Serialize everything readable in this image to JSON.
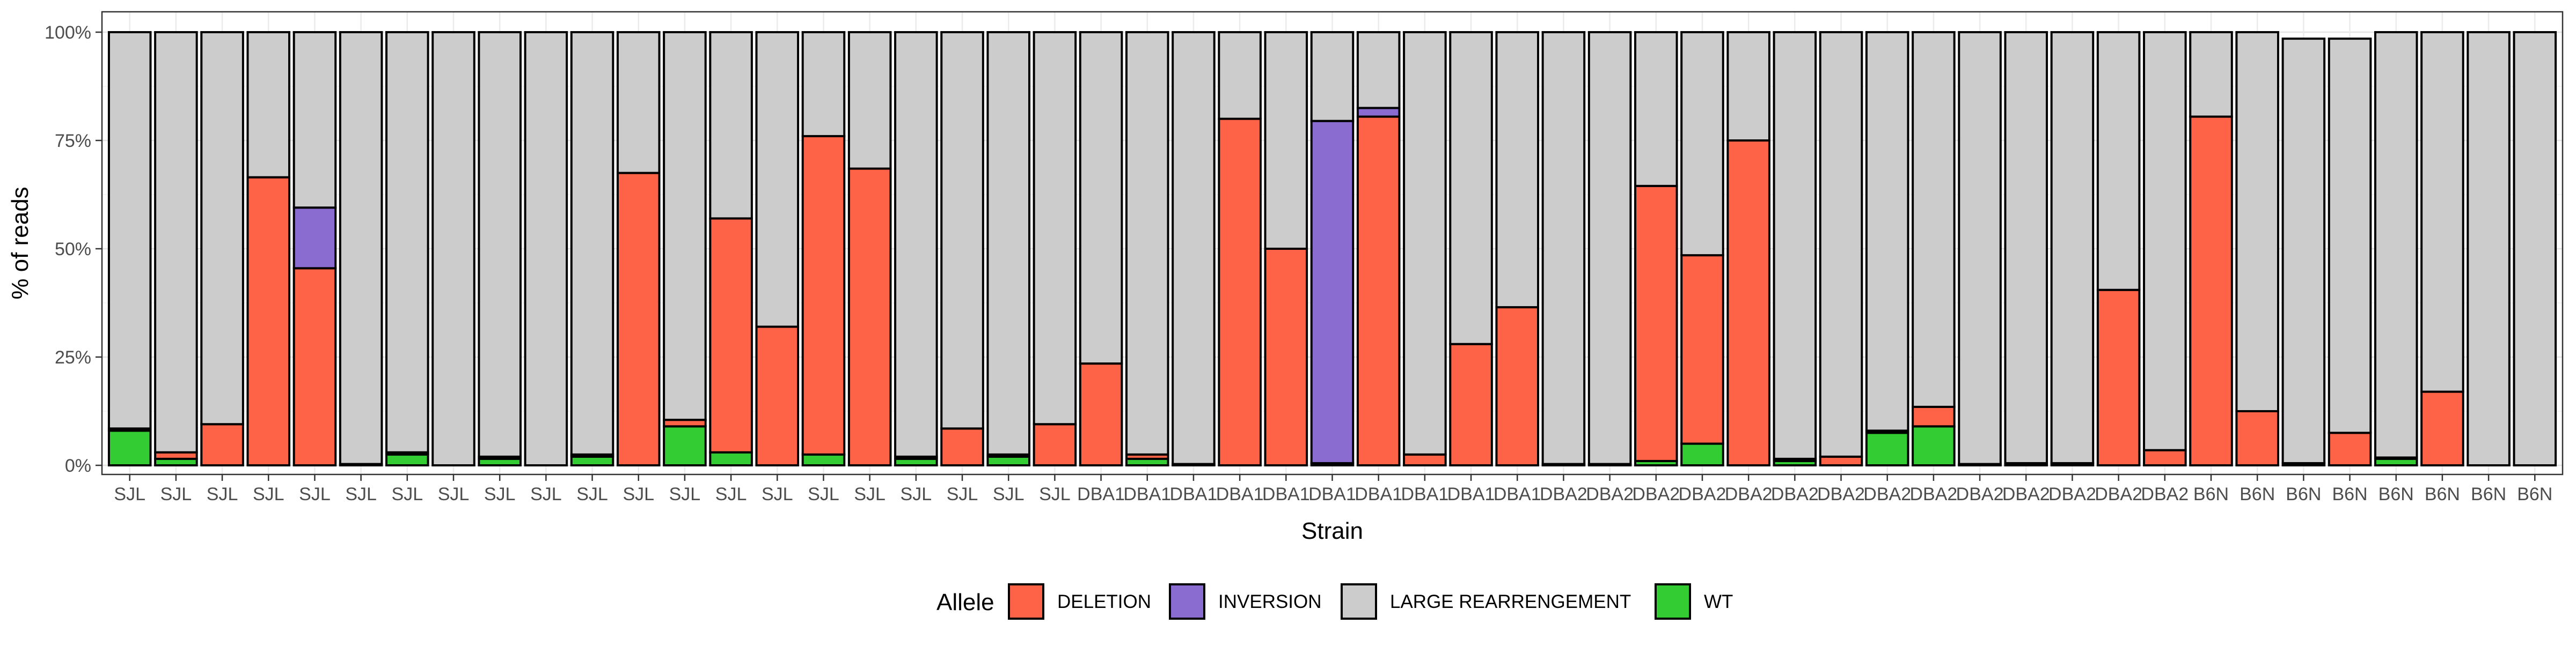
{
  "chart_data": {
    "type": "bar",
    "stacked": true,
    "xlabel": "Strain",
    "ylabel": "% of reads",
    "ylim": [
      0,
      100
    ],
    "y_ticks": [
      "0%",
      "25%",
      "50%",
      "75%",
      "100%"
    ],
    "y_tick_values": [
      0,
      25,
      50,
      75,
      100
    ],
    "legend_title": "Allele",
    "legend_position": "bottom",
    "grid": true,
    "categories": [
      "SJL",
      "SJL",
      "SJL",
      "SJL",
      "SJL",
      "SJL",
      "SJL",
      "SJL",
      "SJL",
      "SJL",
      "SJL",
      "SJL",
      "SJL",
      "SJL",
      "SJL",
      "SJL",
      "SJL",
      "SJL",
      "SJL",
      "SJL",
      "SJL",
      "DBA1",
      "DBA1",
      "DBA1",
      "DBA1",
      "DBA1",
      "DBA1",
      "DBA1",
      "DBA1",
      "DBA1",
      "DBA1",
      "DBA2",
      "DBA2",
      "DBA2",
      "DBA2",
      "DBA2",
      "DBA2",
      "DBA2",
      "DBA2",
      "DBA2",
      "DBA2",
      "DBA2",
      "DBA2",
      "DBA2",
      "DBA2",
      "B6N",
      "B6N",
      "B6N",
      "B6N",
      "B6N",
      "B6N",
      "B6N",
      "B6N"
    ],
    "series": [
      {
        "name": "WT",
        "color": "#33CC33",
        "values": [
          8.0,
          1.5,
          0,
          0,
          0,
          0,
          2.5,
          0,
          1.5,
          0,
          2.0,
          0,
          9.0,
          3.0,
          0,
          2.5,
          0,
          1.5,
          0,
          2.0,
          0,
          0,
          1.5,
          0,
          0,
          0,
          0,
          0,
          0,
          0,
          0,
          0,
          0,
          1.0,
          5.0,
          0,
          1.0,
          0,
          7.5,
          9.0,
          0,
          0,
          0,
          0,
          0,
          0,
          0,
          0,
          0,
          1.5,
          0,
          0,
          0
        ]
      },
      {
        "name": "DELETION",
        "color": "#FF6347",
        "values": [
          0.5,
          1.5,
          9.5,
          66.5,
          45.5,
          0.3,
          0.5,
          0,
          0.5,
          0,
          0.5,
          67.5,
          1.5,
          54.0,
          32.0,
          73.5,
          68.5,
          0.5,
          8.5,
          0.5,
          9.5,
          23.5,
          1.0,
          0.3,
          80.0,
          50.0,
          0.5,
          80.5,
          2.5,
          28.0,
          36.5,
          0.3,
          0.3,
          63.5,
          43.5,
          75.0,
          0.5,
          2.0,
          0.5,
          4.5,
          0.3,
          0.5,
          0.5,
          40.5,
          3.5,
          80.5,
          12.5,
          0.5,
          7.5,
          0.3,
          17.0,
          0,
          0
        ]
      },
      {
        "name": "INVERSION",
        "color": "#8A6BCF",
        "values": [
          0,
          0,
          0,
          0,
          14.0,
          0,
          0,
          0,
          0,
          0,
          0,
          0,
          0,
          0,
          0,
          0,
          0,
          0,
          0,
          0,
          0,
          0,
          0,
          0,
          0,
          0,
          79.0,
          2.0,
          0,
          0,
          0,
          0,
          0,
          0,
          0,
          0,
          0,
          0,
          0,
          0,
          0,
          0,
          0,
          0,
          0,
          0,
          0,
          0,
          0,
          0,
          0,
          0,
          0
        ]
      },
      {
        "name": "LARGE REARRENGEMENT",
        "color": "#CCCCCC",
        "values": [
          91.5,
          97.0,
          90.5,
          33.5,
          40.5,
          99.7,
          97.0,
          100,
          98.0,
          100,
          97.5,
          32.5,
          89.5,
          43.0,
          68.0,
          24.0,
          31.5,
          98.0,
          91.5,
          97.5,
          90.5,
          76.5,
          97.5,
          99.7,
          20.0,
          50.0,
          20.5,
          17.5,
          97.5,
          72.0,
          63.5,
          99.7,
          99.7,
          35.5,
          51.5,
          25.0,
          98.5,
          98.0,
          92.0,
          86.5,
          99.7,
          99.5,
          99.5,
          59.5,
          96.5,
          19.5,
          87.5,
          98.0,
          91.0,
          98.2,
          83.0,
          100,
          100
        ]
      }
    ]
  }
}
